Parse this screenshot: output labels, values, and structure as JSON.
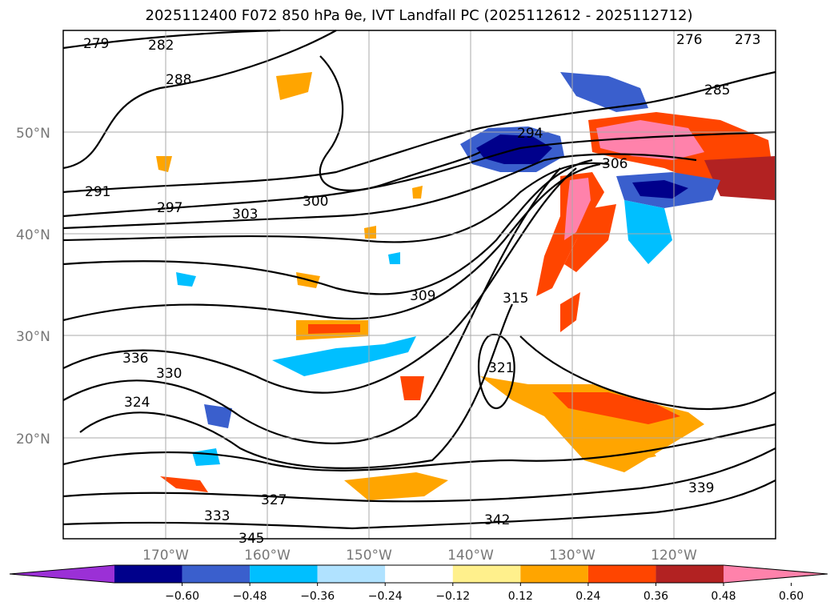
{
  "title_text": "2025112400 F072 850 hPa θe, IVT Landfall PC (2025112612 - 2025112712)",
  "latitudes": [
    "50°N",
    "40°N",
    "30°N",
    "20°N"
  ],
  "longitudes": [
    "170°W",
    "160°W",
    "150°W",
    "140°W",
    "130°W",
    "120°W"
  ],
  "contour_labels": [
    "279",
    "282",
    "285",
    "288",
    "291",
    "294",
    "297",
    "300",
    "303",
    "306",
    "309",
    "315",
    "321",
    "324",
    "327",
    "330",
    "333",
    "336",
    "339",
    "342",
    "345",
    "276",
    "273"
  ],
  "colorbar": {
    "ticks": [
      "−0.60",
      "−0.48",
      "−0.36",
      "−0.24",
      "−0.12",
      "0.12",
      "0.24",
      "0.36",
      "0.48",
      "0.60"
    ],
    "colors": [
      "#9b30d6",
      "#00008b",
      "#3a5fcd",
      "#00bfff",
      "#b0e2ff",
      "#ffffff",
      "#fff08c",
      "#ffa500",
      "#ff4500",
      "#b22222",
      "#ff82ab"
    ]
  }
}
